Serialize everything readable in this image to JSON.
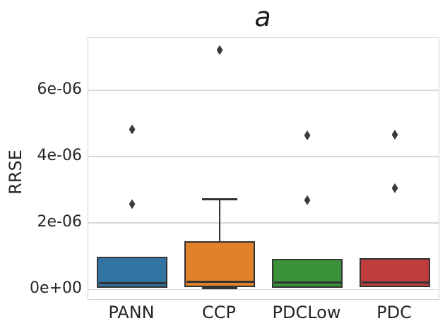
{
  "chart_data": {
    "type": "box",
    "title": "a",
    "xlabel": "",
    "ylabel": "RRSE",
    "categories": [
      "PANN",
      "CCP",
      "PDCLow",
      "PDC"
    ],
    "ylim": [
      -2.9e-07,
      7.57e-06
    ],
    "grid": true,
    "legend": "none",
    "yticks": [
      {
        "value": 0,
        "label": "0e+00"
      },
      {
        "value": 2e-06,
        "label": "2e-06"
      },
      {
        "value": 4e-06,
        "label": "4e-06"
      },
      {
        "value": 6e-06,
        "label": "6e-06"
      }
    ],
    "boxes": [
      {
        "category": "PANN",
        "color": "#3274a1",
        "q1": 5e-08,
        "median": 1.8e-07,
        "q3": 9.8e-07,
        "whisker_low": null,
        "whisker_high": null,
        "outliers": [
          2.57e-06,
          4.82e-06
        ]
      },
      {
        "category": "CCP",
        "color": "#e1812c",
        "q1": 8e-08,
        "median": 2.4e-07,
        "q3": 1.45e-06,
        "whisker_low": 3e-08,
        "whisker_high": 2.72e-06,
        "outliers": [
          7.21e-06
        ]
      },
      {
        "category": "PDCLow",
        "color": "#3a923a",
        "q1": 5e-08,
        "median": 2e-07,
        "q3": 9.2e-07,
        "whisker_low": null,
        "whisker_high": null,
        "outliers": [
          2.69e-06,
          4.64e-06
        ]
      },
      {
        "category": "PDC",
        "color": "#c03d3e",
        "q1": 7e-08,
        "median": 2e-07,
        "q3": 9.5e-07,
        "whisker_low": null,
        "whisker_high": null,
        "outliers": [
          3.05e-06,
          4.66e-06
        ]
      }
    ],
    "style": {
      "edge_color": "#333333",
      "flier_color": "#3b3b3b",
      "grid_color": "#d9d9d9",
      "spine_color": "#cfcfcf",
      "text_color": "#262626"
    }
  }
}
